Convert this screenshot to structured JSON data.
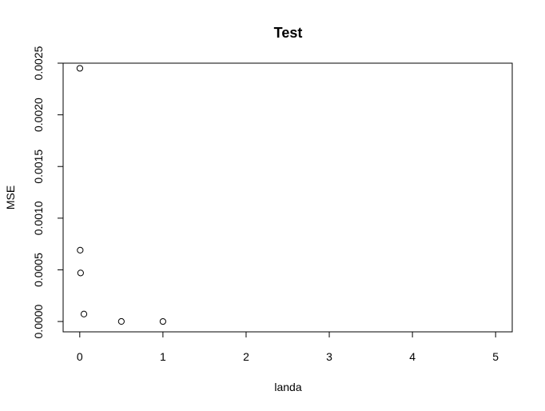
{
  "chart_data": {
    "type": "scatter",
    "title": "Test",
    "xlabel": "landa",
    "ylabel": "MSE",
    "xlim": [
      -0.2,
      5.2
    ],
    "ylim": [
      -0.0001,
      0.0025
    ],
    "x_ticks": [
      0,
      1,
      2,
      3,
      4,
      5
    ],
    "x_tick_labels": [
      "0",
      "1",
      "2",
      "3",
      "4",
      "5"
    ],
    "y_ticks": [
      0.0,
      0.0005,
      0.001,
      0.0015,
      0.002,
      0.0025
    ],
    "y_tick_labels": [
      "0.0000",
      "0.0005",
      "0.0010",
      "0.0015",
      "0.0020",
      "0.0025"
    ],
    "grid": false,
    "marker": "open-circle",
    "series": [
      {
        "points": [
          {
            "x": 0.001,
            "y": 0.00245
          },
          {
            "x": 0.005,
            "y": 0.00069
          },
          {
            "x": 0.01,
            "y": 0.00047
          },
          {
            "x": 0.05,
            "y": 7.2e-05
          },
          {
            "x": 0.5,
            "y": 5e-07
          },
          {
            "x": 1.0,
            "y": 2e-07
          }
        ]
      }
    ]
  }
}
